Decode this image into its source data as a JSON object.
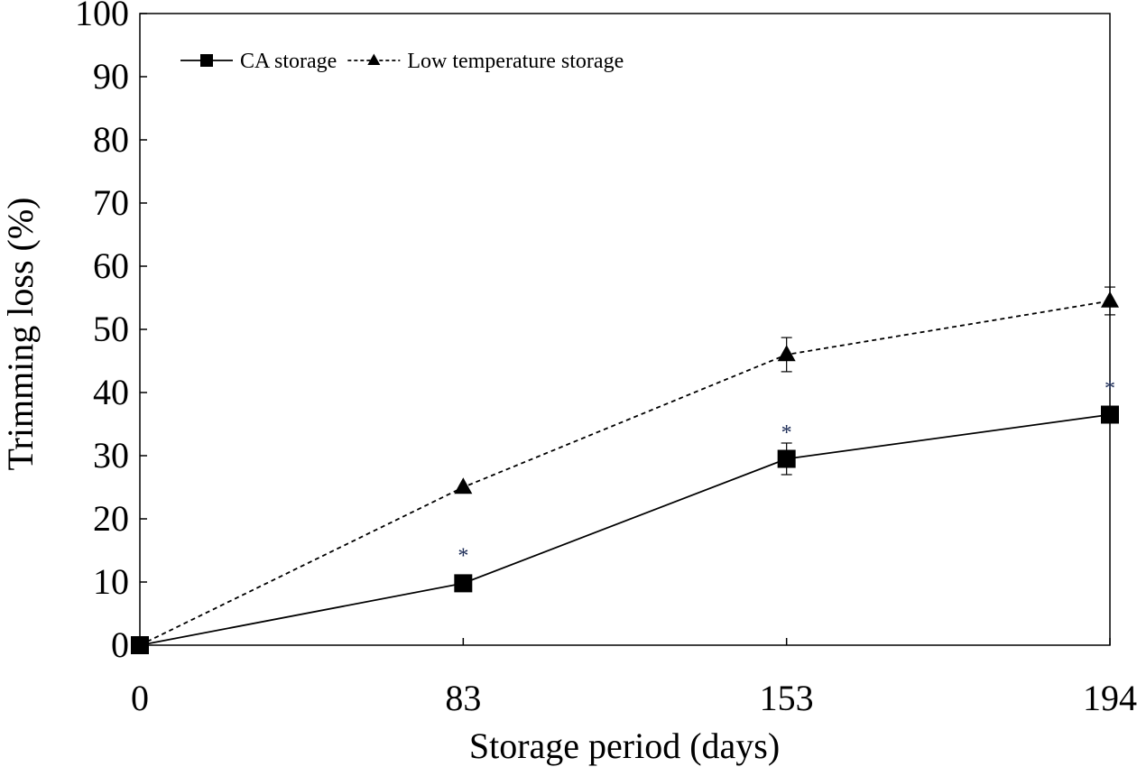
{
  "chart_data": {
    "type": "line",
    "xlabel": "Storage period (days)",
    "ylabel": "Trimming loss (%)",
    "x_categories": [
      "0",
      "83",
      "153",
      "194"
    ],
    "ylim": [
      0,
      100
    ],
    "yticks": [
      0,
      10,
      20,
      30,
      40,
      50,
      60,
      70,
      80,
      90,
      100
    ],
    "grid": false,
    "legend_position": "top-left",
    "series": [
      {
        "name": "CA storage",
        "marker": "square",
        "line_style": "solid",
        "values": [
          0,
          9.8,
          29.5,
          36.5
        ],
        "errors": [
          0,
          0,
          2.5,
          0
        ]
      },
      {
        "name": "Low temperature storage",
        "marker": "triangle",
        "line_style": "dashed",
        "values": [
          0,
          25,
          46,
          54.5
        ],
        "errors": [
          0,
          0,
          2.7,
          2.2
        ]
      }
    ],
    "annotations": [
      {
        "text": "*",
        "category_index": 1,
        "y": 14.5
      },
      {
        "text": "*",
        "category_index": 2,
        "y": 34
      },
      {
        "text": "*",
        "category_index": 3,
        "y": 41
      }
    ]
  }
}
